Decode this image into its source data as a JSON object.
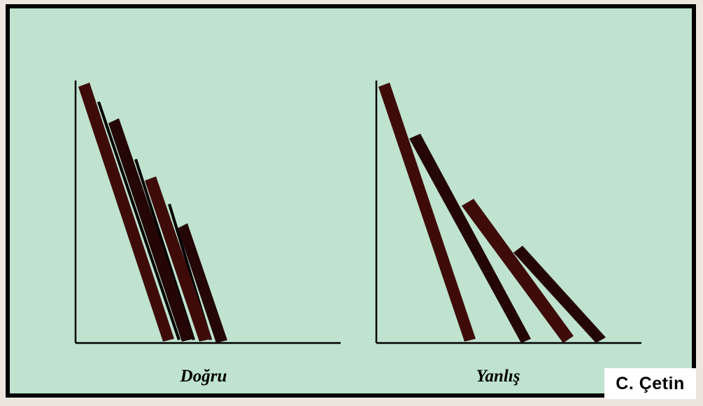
{
  "panels": [
    {
      "id": "correct",
      "caption": "Doğru"
    },
    {
      "id": "incorrect",
      "caption": "Yanlış"
    }
  ],
  "credit": "C. Çetin",
  "colors": {
    "background": "#bfe3cf",
    "border": "#000000",
    "bar_red": "#3e0b09",
    "bar_dark": "#240606",
    "axis": "#000000"
  }
}
